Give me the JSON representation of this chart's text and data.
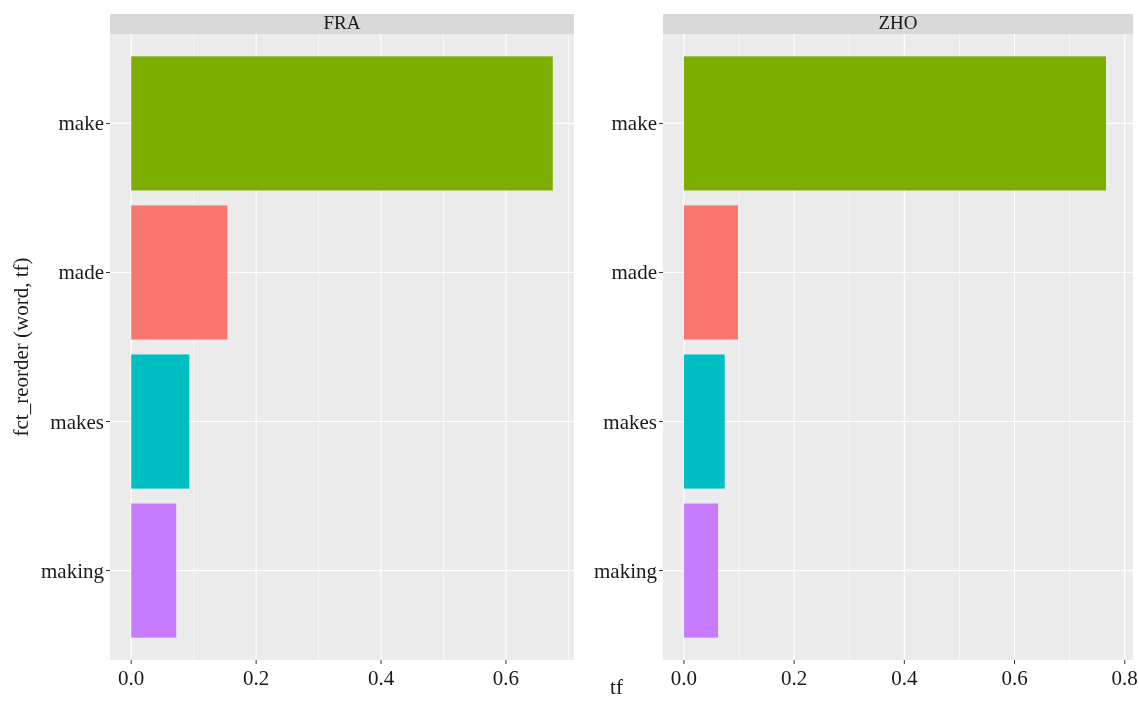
{
  "chart_data": [
    {
      "type": "bar",
      "orientation": "horizontal",
      "title": "FRA",
      "ylabel": "fct_reorder (word, tf)",
      "xlabel": "tf",
      "categories": [
        "make",
        "made",
        "makes",
        "making"
      ],
      "values": [
        0.675,
        0.154,
        0.093,
        0.072
      ],
      "colors": [
        "#7cae00",
        "#f8766d",
        "#00bfc4",
        "#c77cff"
      ],
      "xlim": [
        -0.034,
        0.709
      ],
      "xticks": [
        {
          "value": 0,
          "label": "0.0"
        },
        {
          "value": 0.2,
          "label": "0.2"
        },
        {
          "value": 0.4,
          "label": "0.4"
        },
        {
          "value": 0.6,
          "label": "0.6"
        }
      ],
      "grid": true
    },
    {
      "type": "bar",
      "orientation": "horizontal",
      "title": "ZHO",
      "categories": [
        "make",
        "made",
        "makes",
        "making"
      ],
      "values": [
        0.766,
        0.098,
        0.074,
        0.062
      ],
      "colors": [
        "#7cae00",
        "#f8766d",
        "#00bfc4",
        "#c77cff"
      ],
      "xlim": [
        -0.038,
        0.815
      ],
      "xticks": [
        {
          "value": 0,
          "label": "0.0"
        },
        {
          "value": 0.2,
          "label": "0.2"
        },
        {
          "value": 0.4,
          "label": "0.4"
        },
        {
          "value": 0.6,
          "label": "0.6"
        },
        {
          "value": 0.8,
          "label": "0.8"
        }
      ],
      "grid": true
    }
  ]
}
